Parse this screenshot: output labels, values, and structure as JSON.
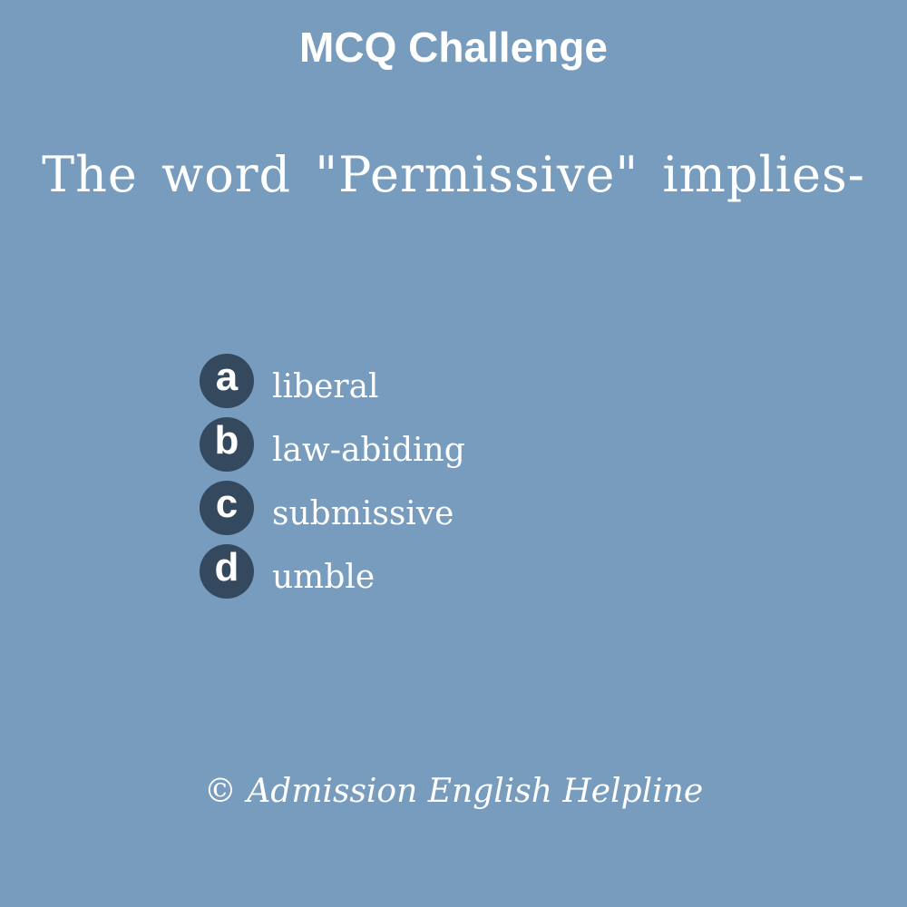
{
  "title": "MCQ Challenge",
  "question": "The word \"Permissive\" implies-",
  "options": [
    {
      "letter": "a",
      "text": "liberal"
    },
    {
      "letter": "b",
      "text": "law-abiding"
    },
    {
      "letter": "c",
      "text": "submissive"
    },
    {
      "letter": "d",
      "text": "umble"
    }
  ],
  "footer": "© Admission English Helpline",
  "colors": {
    "background": "#779cbd",
    "badge": "#34495e",
    "text": "#ffffff"
  }
}
